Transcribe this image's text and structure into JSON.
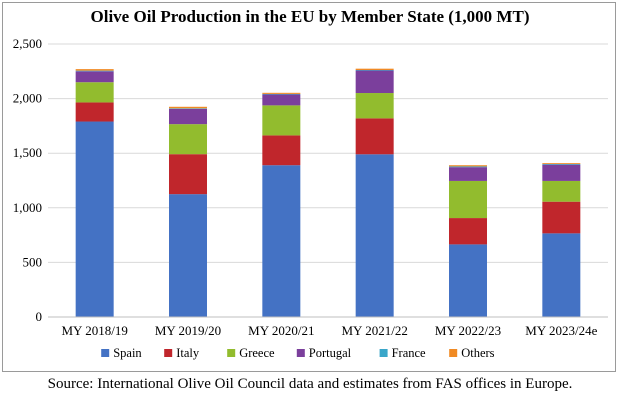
{
  "chart_data": {
    "type": "bar",
    "stacked": true,
    "title": "Olive Oil Production in the EU by Member State (1,000 MT)",
    "source": "Source: International Olive Oil Council data and estimates from FAS offices in Europe.",
    "categories": [
      "MY 2018/19",
      "MY 2019/20",
      "MY 2020/21",
      "MY 2021/22",
      "MY 2022/23",
      "MY 2023/24e"
    ],
    "series": [
      {
        "name": "Spain",
        "color": "#4472c4",
        "values": [
          1790,
          1125,
          1390,
          1490,
          665,
          766
        ]
      },
      {
        "name": "Italy",
        "color": "#c0262c",
        "values": [
          175,
          366,
          273,
          329,
          241,
          290
        ]
      },
      {
        "name": "Greece",
        "color": "#92bc2e",
        "values": [
          185,
          275,
          275,
          232,
          340,
          190
        ]
      },
      {
        "name": "Portugal",
        "color": "#7b3f9c",
        "values": [
          100,
          140,
          100,
          206,
          126,
          149
        ]
      },
      {
        "name": "France",
        "color": "#3aa6c9",
        "values": [
          6,
          5,
          5,
          5,
          7,
          6
        ]
      },
      {
        "name": "Others",
        "color": "#f08a24",
        "values": [
          14,
          14,
          10,
          12,
          11,
          8
        ]
      }
    ],
    "ylim": [
      0,
      2500
    ],
    "yticks": [
      0,
      500,
      1000,
      1500,
      2000,
      2500
    ],
    "ytick_labels": [
      "0",
      "500",
      "1,000",
      "1,500",
      "2,000",
      "2,500"
    ],
    "grid": true,
    "legend_position": "bottom"
  }
}
